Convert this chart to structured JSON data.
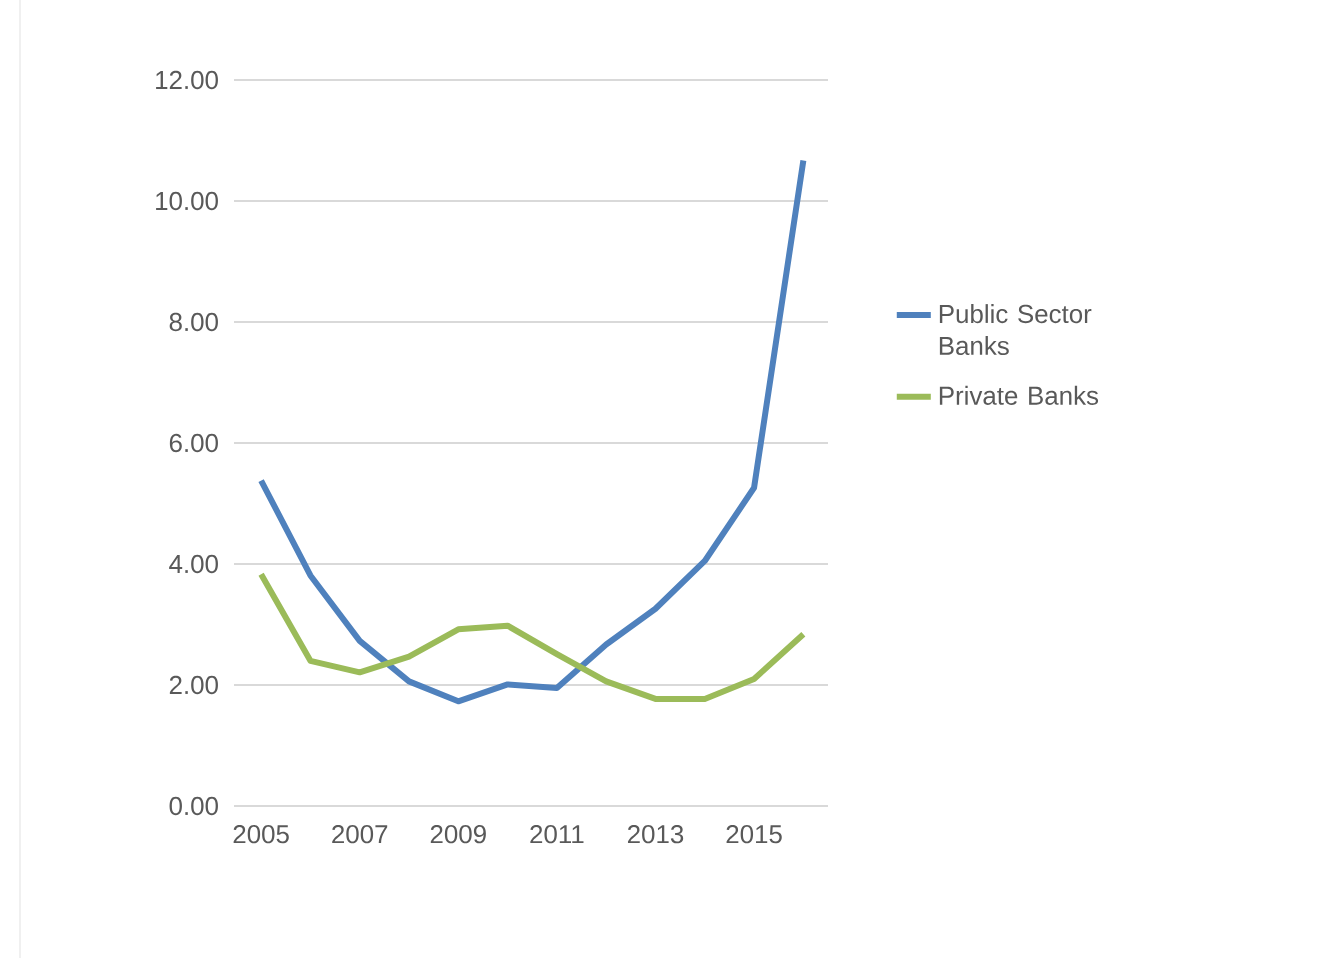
{
  "chart_data": {
    "type": "line",
    "categories": [
      "2005",
      null,
      "2007",
      null,
      "2009",
      null,
      "2011",
      null,
      "2013",
      null,
      "2015",
      null
    ],
    "series": [
      {
        "name": "Public Sector Banks",
        "color": "#4f81bd",
        "values": [
          5.38,
          3.81,
          2.73,
          2.06,
          1.73,
          2.01,
          1.95,
          2.67,
          3.26,
          4.05,
          5.26,
          10.67
        ]
      },
      {
        "name": "Private Banks",
        "color": "#9bbb59",
        "values": [
          3.83,
          2.4,
          2.21,
          2.47,
          2.92,
          2.98,
          2.51,
          2.06,
          1.77,
          1.77,
          2.1,
          2.84
        ]
      }
    ],
    "ylim": [
      0,
      12
    ],
    "yticks": [
      {
        "value": 0,
        "label": "0.00"
      },
      {
        "value": 2,
        "label": "2.00"
      },
      {
        "value": 4,
        "label": "4.00"
      },
      {
        "value": 6,
        "label": "6.00"
      },
      {
        "value": 8,
        "label": "8.00"
      },
      {
        "value": 10,
        "label": "10.00"
      },
      {
        "value": 12,
        "label": "12.00"
      }
    ],
    "grid": "y",
    "legend": "right",
    "marker": "none",
    "line_style": "solid"
  }
}
